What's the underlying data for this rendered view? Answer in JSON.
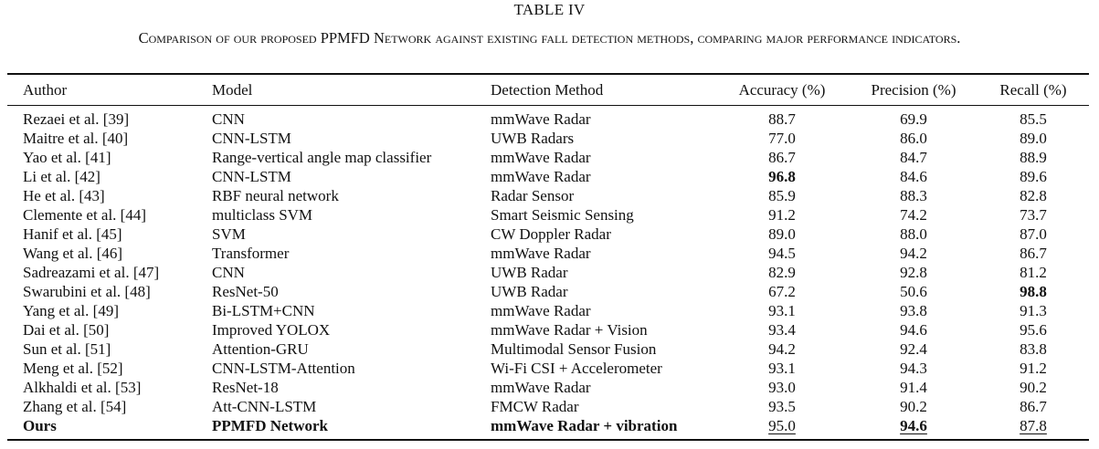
{
  "table": {
    "label": "TABLE IV",
    "caption": "Comparison of our proposed PPMFD Network against existing fall detection methods, comparing major performance indicators.",
    "headers": [
      "Author",
      "Model",
      "Detection Method",
      "Accuracy (%)",
      "Precision (%)",
      "Recall (%)"
    ],
    "rows": [
      {
        "author": "Rezaei et al. [39]",
        "model": "CNN",
        "method": "mmWave Radar",
        "accuracy": "88.7",
        "precision": "69.9",
        "recall": "85.5"
      },
      {
        "author": "Maitre et al. [40]",
        "model": "CNN-LSTM",
        "method": "UWB Radars",
        "accuracy": "77.0",
        "precision": "86.0",
        "recall": "89.0"
      },
      {
        "author": "Yao et al. [41]",
        "model": "Range-vertical angle map classifier",
        "method": "mmWave Radar",
        "accuracy": "86.7",
        "precision": "84.7",
        "recall": "88.9"
      },
      {
        "author": "Li et al. [42]",
        "model": "CNN-LSTM",
        "method": "mmWave Radar",
        "accuracy": "96.8",
        "precision": "84.6",
        "recall": "89.6"
      },
      {
        "author": "He et al. [43]",
        "model": "RBF neural network",
        "method": "Radar Sensor",
        "accuracy": "85.9",
        "precision": "88.3",
        "recall": "82.8"
      },
      {
        "author": "Clemente et al. [44]",
        "model": "multiclass SVM",
        "method": "Smart Seismic Sensing",
        "accuracy": "91.2",
        "precision": "74.2",
        "recall": "73.7"
      },
      {
        "author": "Hanif et al. [45]",
        "model": "SVM",
        "method": "CW Doppler Radar",
        "accuracy": "89.0",
        "precision": "88.0",
        "recall": "87.0"
      },
      {
        "author": "Wang et al. [46]",
        "model": "Transformer",
        "method": "mmWave Radar",
        "accuracy": "94.5",
        "precision": "94.2",
        "recall": "86.7"
      },
      {
        "author": "Sadreazami et al. [47]",
        "model": "CNN",
        "method": "UWB Radar",
        "accuracy": "82.9",
        "precision": "92.8",
        "recall": "81.2"
      },
      {
        "author": "Swarubini et al. [48]",
        "model": "ResNet-50",
        "method": "UWB Radar",
        "accuracy": "67.2",
        "precision": "50.6",
        "recall": "98.8"
      },
      {
        "author": "Yang et al. [49]",
        "model": "Bi-LSTM+CNN",
        "method": "mmWave Radar",
        "accuracy": "93.1",
        "precision": "93.8",
        "recall": "91.3"
      },
      {
        "author": "Dai et al. [50]",
        "model": "Improved YOLOX",
        "method": "mmWave Radar + Vision",
        "accuracy": "93.4",
        "precision": "94.6",
        "recall": "95.6"
      },
      {
        "author": "Sun et al. [51]",
        "model": "Attention-GRU",
        "method": "Multimodal Sensor Fusion",
        "accuracy": "94.2",
        "precision": "92.4",
        "recall": "83.8"
      },
      {
        "author": "Meng et al. [52]",
        "model": "CNN-LSTM-Attention",
        "method": "Wi-Fi CSI + Accelerometer",
        "accuracy": "93.1",
        "precision": "94.3",
        "recall": "91.2"
      },
      {
        "author": "Alkhaldi et al. [53]",
        "model": "ResNet-18",
        "method": "mmWave Radar",
        "accuracy": "93.0",
        "precision": "91.4",
        "recall": "90.2"
      },
      {
        "author": "Zhang et al. [54]",
        "model": "Att-CNN-LSTM",
        "method": "FMCW Radar",
        "accuracy": "93.5",
        "precision": "90.2",
        "recall": "86.7"
      },
      {
        "author": "Ours",
        "model": "PPMFD Network",
        "method": "mmWave Radar + vibration",
        "accuracy": "95.0",
        "precision": "94.6",
        "recall": "87.8"
      }
    ]
  }
}
